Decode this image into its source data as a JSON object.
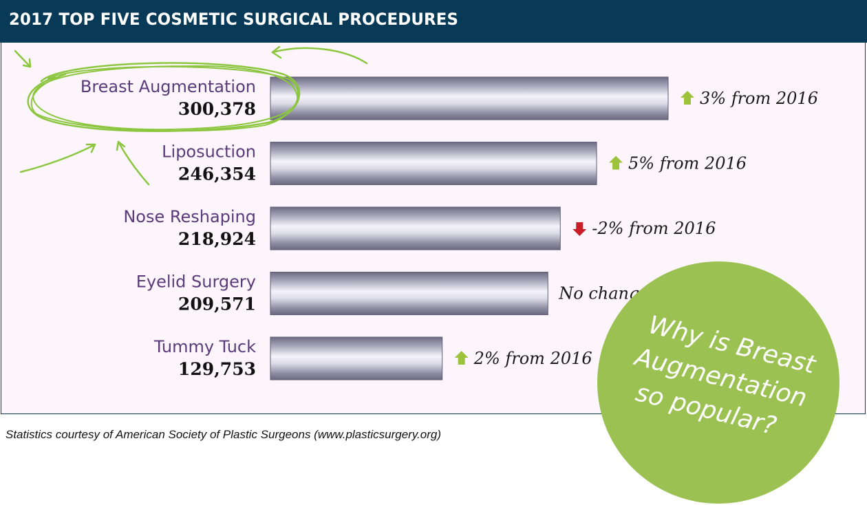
{
  "header": {
    "title": "2017 TOP FIVE COSMETIC SURGICAL PROCEDURES"
  },
  "chart_data": {
    "type": "bar",
    "orientation": "horizontal",
    "title": "2017 TOP FIVE COSMETIC SURGICAL PROCEDURES",
    "categories": [
      "Breast Augmentation",
      "Liposuction",
      "Nose Reshaping",
      "Eyelid Surgery",
      "Tummy Tuck"
    ],
    "values": [
      300378,
      246354,
      218924,
      209571,
      129753
    ],
    "value_labels": [
      "300,378",
      "246,354",
      "218,924",
      "209,571",
      "129,753"
    ],
    "changes": [
      {
        "direction": "up",
        "text": "3% from 2016"
      },
      {
        "direction": "up",
        "text": "5% from 2016"
      },
      {
        "direction": "down",
        "text": "-2% from 2016"
      },
      {
        "direction": "none",
        "text": "No change"
      },
      {
        "direction": "up",
        "text": "2% from 2016"
      }
    ],
    "highlight": "Breast Augmentation",
    "xlim": [
      0,
      300378
    ],
    "grid": false,
    "colors": {
      "bar": "#a6a5b8",
      "up": "#9dc23c",
      "down": "#c81e2a",
      "category_text": "#5a3a7a",
      "highlight_ring": "#8cc63f"
    }
  },
  "callout": {
    "lines": [
      "Why is Breast",
      "Augmentation",
      "so popular?"
    ],
    "color": "#9bc153"
  },
  "footnote": "Statistics courtesy of American Society of Plastic Surgeons (www.plasticsurgery.org)",
  "colors": {
    "header_bg": "#083a57",
    "panel_bg": "#fcf5fb"
  }
}
